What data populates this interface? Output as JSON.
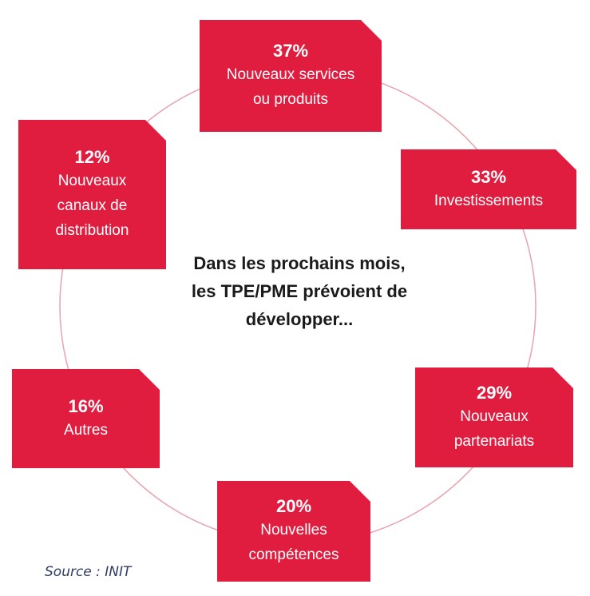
{
  "center_text": "Dans les prochains mois, les TPE/PME prévoient de développer...",
  "source": "Source : INIT",
  "colors": {
    "box": "#e11d3f",
    "ring": "#e8a3ae",
    "text_center": "#1a1a1a",
    "source": "#2f3b63"
  },
  "items": [
    {
      "pct": "37%",
      "label": "Nouveaux services\nou produits"
    },
    {
      "pct": "33%",
      "label": "Investissements"
    },
    {
      "pct": "29%",
      "label": "Nouveaux\npartenariats"
    },
    {
      "pct": "20%",
      "label": "Nouvelles\ncompétences"
    },
    {
      "pct": "16%",
      "label": "Autres"
    },
    {
      "pct": "12%",
      "label": "Nouveaux\ncanaux de\ndistribution"
    }
  ]
}
